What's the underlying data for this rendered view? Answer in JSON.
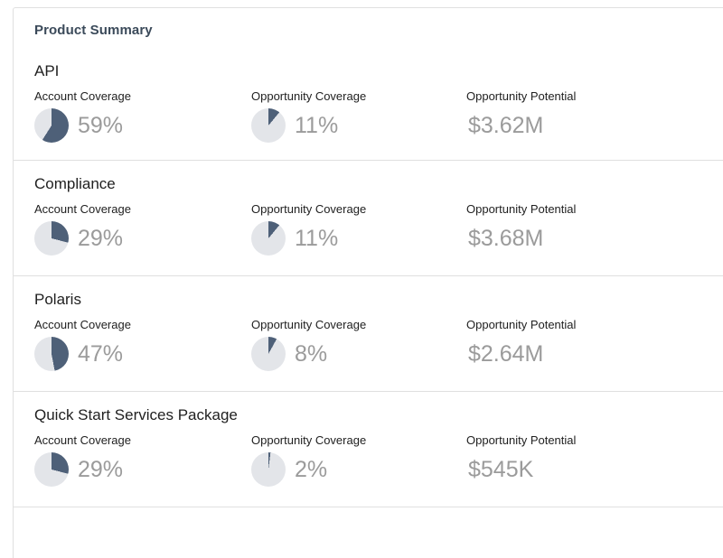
{
  "panel": {
    "title": "Product Summary"
  },
  "column_headers": {
    "account_coverage": "Account Coverage",
    "opportunity_coverage": "Opportunity Coverage",
    "opportunity_potential": "Opportunity Potential"
  },
  "products": [
    {
      "name": "API",
      "account_coverage_pct": 59,
      "account_coverage_text": "59%",
      "opportunity_coverage_pct": 11,
      "opportunity_coverage_text": "11%",
      "opportunity_potential": "$3.62M"
    },
    {
      "name": "Compliance",
      "account_coverage_pct": 29,
      "account_coverage_text": "29%",
      "opportunity_coverage_pct": 11,
      "opportunity_coverage_text": "11%",
      "opportunity_potential": "$3.68M"
    },
    {
      "name": "Polaris",
      "account_coverage_pct": 47,
      "account_coverage_text": "47%",
      "opportunity_coverage_pct": 8,
      "opportunity_coverage_text": "8%",
      "opportunity_potential": "$2.64M"
    },
    {
      "name": "Quick Start Services Package",
      "account_coverage_pct": 29,
      "account_coverage_text": "29%",
      "opportunity_coverage_pct": 2,
      "opportunity_coverage_text": "2%",
      "opportunity_potential": "$545K"
    }
  ],
  "colors": {
    "pie_fill": "#4e6078",
    "pie_track": "#e3e5e9",
    "divider": "#e0e0e0",
    "title_text": "#3b4a5a",
    "body_text": "#212121",
    "muted_value_text": "#9b9b9b"
  }
}
